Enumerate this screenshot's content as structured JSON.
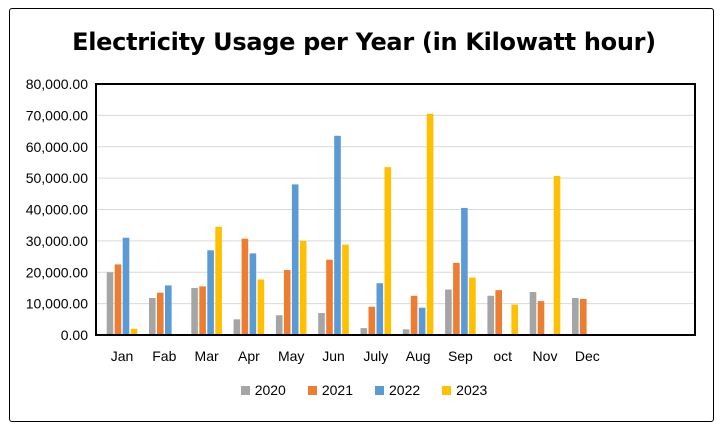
{
  "chart_data": {
    "type": "bar",
    "title": "Electricity Usage per Year (in Kilowatt hour)",
    "xlabel": "",
    "ylabel": "",
    "ylim": [
      0,
      80000
    ],
    "y_ticks": [
      "0.00",
      "10,000.00",
      "20,000.00",
      "30,000.00",
      "40,000.00",
      "50,000.00",
      "60,000.00",
      "70,000.00",
      "80,000.00"
    ],
    "y_tick_values": [
      0,
      10000,
      20000,
      30000,
      40000,
      50000,
      60000,
      70000,
      80000
    ],
    "grid": true,
    "legend_position": "bottom",
    "categories": [
      "Jan",
      "Fab",
      "Mar",
      "Apr",
      "May",
      "Jun",
      "July",
      "Aug",
      "Sep",
      "oct",
      "Nov",
      "Dec"
    ],
    "series": [
      {
        "name": "2020",
        "color": "#a5a5a5",
        "values": [
          20000,
          11800,
          15000,
          5000,
          6300,
          7000,
          2200,
          1800,
          14500,
          12500,
          13700,
          11800
        ]
      },
      {
        "name": "2021",
        "color": "#ed7d31",
        "values": [
          22500,
          13500,
          15500,
          30700,
          20700,
          24000,
          9000,
          12500,
          23000,
          14300,
          10800,
          11500
        ]
      },
      {
        "name": "2022",
        "color": "#5b9bd5",
        "values": [
          31000,
          15800,
          27000,
          26000,
          48000,
          63500,
          16500,
          8700,
          40500,
          0,
          0,
          0
        ]
      },
      {
        "name": "2023",
        "color": "#ffc000",
        "values": [
          2000,
          0,
          34500,
          17700,
          30000,
          28800,
          53500,
          70500,
          18300,
          9700,
          50700,
          0
        ]
      }
    ]
  }
}
